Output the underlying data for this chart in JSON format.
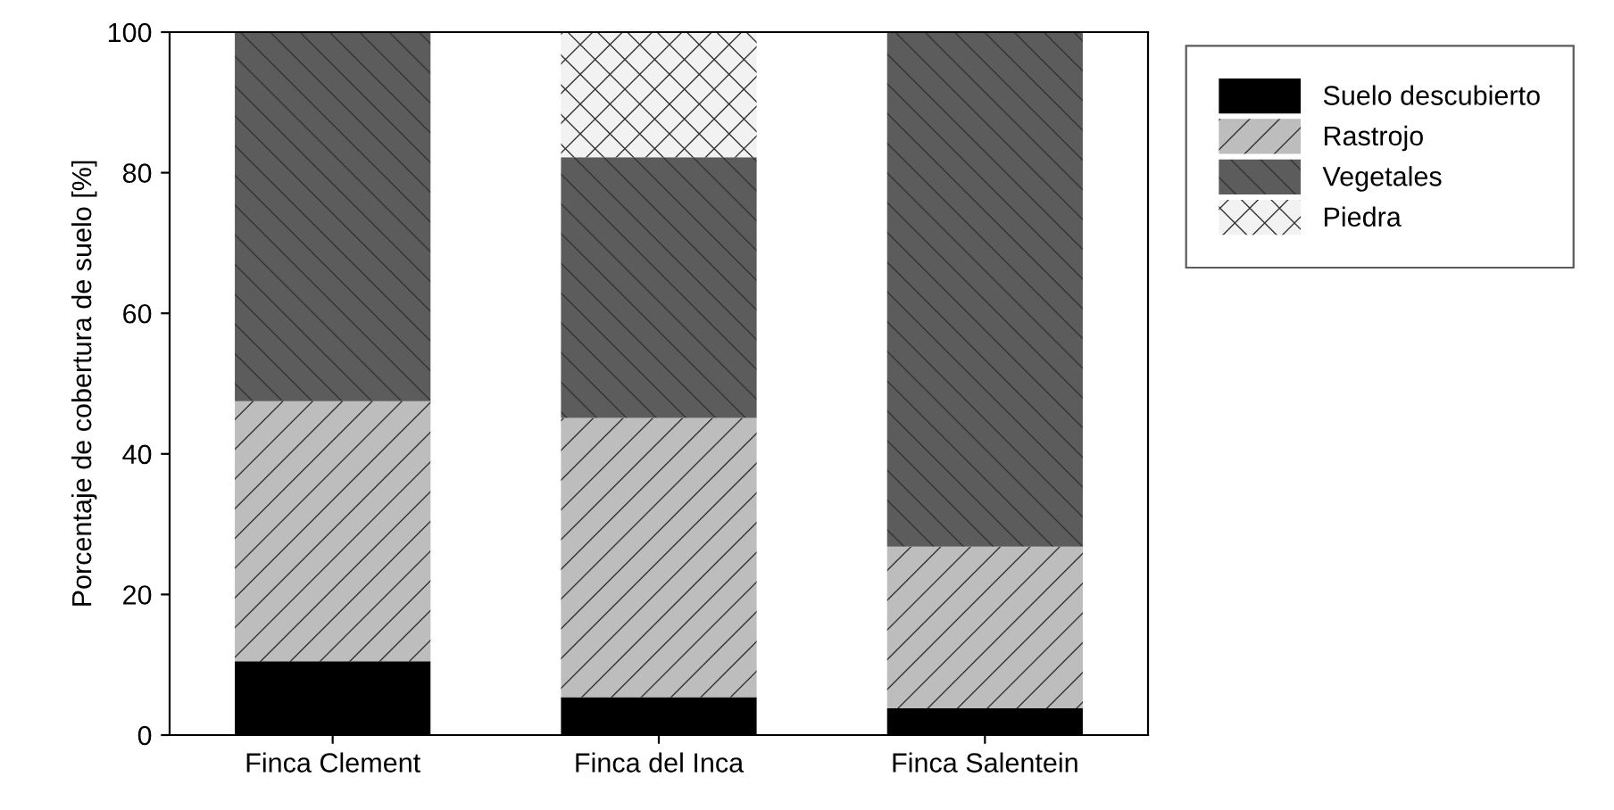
{
  "chart_data": {
    "type": "bar",
    "stacked": true,
    "ylabel": "Porcentaje de cobertura de suelo [%]",
    "categories": [
      "Finca Clement",
      "Finca del Inca",
      "Finca Salentein"
    ],
    "series": [
      {
        "name": "Suelo descubierto",
        "color": "#000000",
        "values": [
          10.5,
          5.4,
          3.8
        ]
      },
      {
        "name": "Rastrojo",
        "color": "#bdbdbd",
        "values": [
          37.0,
          39.7,
          23.0
        ]
      },
      {
        "name": "Vegetales",
        "color": "#5c5c5c",
        "values": [
          52.5,
          37.1,
          73.2
        ]
      },
      {
        "name": "Piedra",
        "color": "#f2f2f2",
        "values": [
          0,
          17.8,
          0
        ]
      }
    ],
    "ylim": [
      0,
      100
    ],
    "yticks": [
      0,
      20,
      40,
      60,
      80,
      100
    ],
    "grid": false,
    "legend": "top right"
  }
}
